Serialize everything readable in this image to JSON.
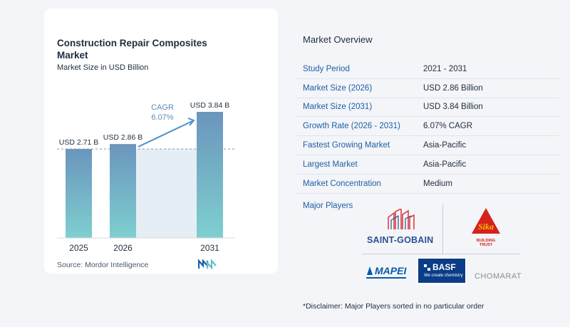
{
  "chart": {
    "title": "Construction Repair Composites Market",
    "subtitle": "Market Size in USD Billion",
    "source": "Source: Mordor Intelligence",
    "cagr_label": "CAGR",
    "cagr_value": "6.07%"
  },
  "chart_data": {
    "type": "bar",
    "title": "Construction Repair Composites Market",
    "subtitle": "Market Size in USD Billion",
    "categories": [
      "2025",
      "2026",
      "2031"
    ],
    "values": [
      2.71,
      2.86,
      3.84
    ],
    "data_labels": [
      "USD 2.71 B",
      "USD 2.86 B",
      "USD 3.84 B"
    ],
    "unit": "USD Billion",
    "colors": {
      "bar_top": "#6b95bd",
      "bar_bottom": "#7ecfd0",
      "band": "#e6eef5",
      "arrow": "#4b8fc6",
      "cagr_text": "#5a8bb8"
    }
  },
  "overview": {
    "title": "Market Overview",
    "rows": [
      {
        "label": "Study Period",
        "value": "2021 - 2031"
      },
      {
        "label": "Market Size (2026)",
        "value": "USD 2.86 Billion"
      },
      {
        "label": "Market Size (2031)",
        "value": "USD 3.84 Billion"
      },
      {
        "label": "Growth Rate (2026 - 2031)",
        "value": "6.07% CAGR"
      },
      {
        "label": "Fastest Growing Market",
        "value": "Asia-Pacific"
      },
      {
        "label": "Largest Market",
        "value": "Asia-Pacific"
      },
      {
        "label": "Market Concentration",
        "value": "Medium"
      }
    ]
  },
  "players": {
    "title": "Major Players",
    "saint_gobain": "SAINT-GOBAIN",
    "sika": "Sika",
    "sika_tagline": "BUILDING TRUST",
    "mapei": "MAPEI",
    "basf": "BASF",
    "basf_tagline": "We create chemistry",
    "chomarat": "CHOMARAT"
  },
  "disclaimer": "*Disclaimer: Major Players sorted in no particular order"
}
